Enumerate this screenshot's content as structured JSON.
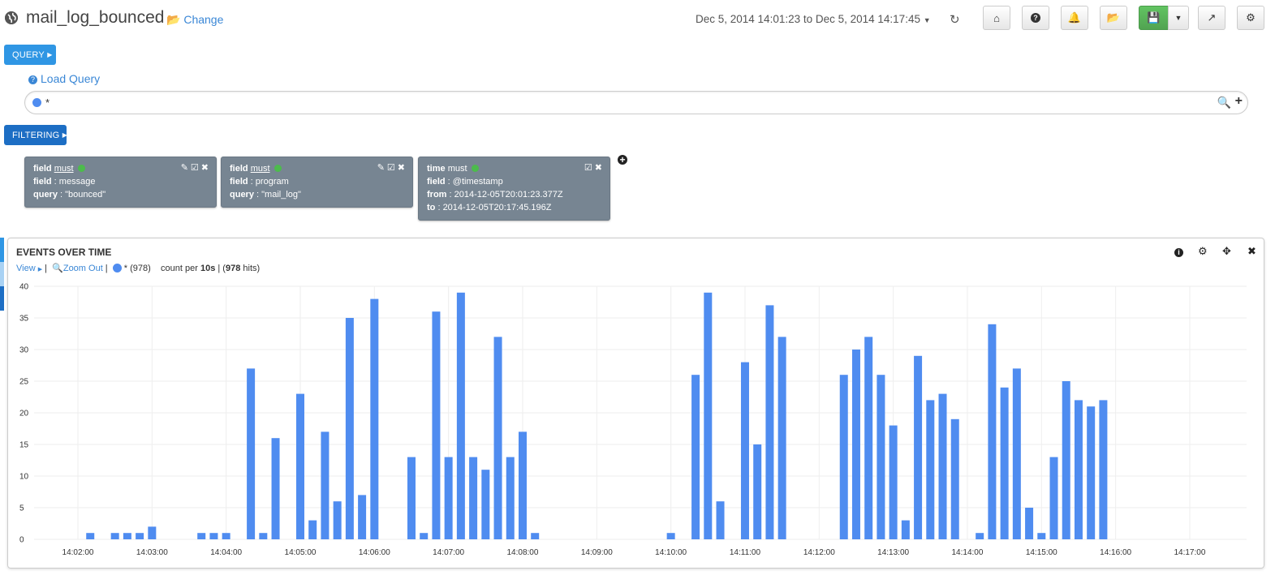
{
  "header": {
    "title": "mail_log_bounced",
    "change_label": "Change",
    "timerange": "Dec 5, 2014 14:01:23 to Dec 5, 2014 14:17:45",
    "buttons": [
      "home-icon",
      "help-icon",
      "bell-icon",
      "folder-open-icon",
      "save-icon",
      "caret-down-icon",
      "share-icon",
      "gear-icon"
    ]
  },
  "query": {
    "button_label": "QUERY",
    "load_query_label": "Load Query",
    "value": "*"
  },
  "filtering": {
    "button_label": "FILTERING",
    "filters": [
      {
        "type": "field",
        "mode": "must",
        "lines": [
          {
            "k": "field",
            "v": "message"
          },
          {
            "k": "query",
            "v": "\"bounced\""
          }
        ]
      },
      {
        "type": "field",
        "mode": "must",
        "lines": [
          {
            "k": "field",
            "v": "program"
          },
          {
            "k": "query",
            "v": "\"mail_log\""
          }
        ]
      },
      {
        "type": "time",
        "mode": "must",
        "lines": [
          {
            "k": "field",
            "v": "@timestamp"
          },
          {
            "k": "from",
            "v": "2014-12-05T20:01:23.377Z"
          },
          {
            "k": "to",
            "v": "2014-12-05T20:17:45.196Z"
          }
        ]
      }
    ]
  },
  "panel": {
    "title": "EVENTS OVER TIME",
    "view_label": "View",
    "zoom_out_label": "Zoom Out",
    "series_label": "* (978)",
    "count_prefix": "count per ",
    "interval": "10s",
    "hits_prefix": " | (",
    "hits": "978",
    "hits_suffix": " hits)"
  },
  "colors": {
    "bar": "#4f8cf0",
    "accent": "#2f96e4",
    "save": "#5cb85c",
    "filter_bg": "#778592"
  },
  "chart_data": {
    "type": "bar",
    "title": "EVENTS OVER TIME",
    "xlabel": "",
    "ylabel": "",
    "ylim": [
      0,
      40
    ],
    "yticks": [
      0,
      5,
      10,
      15,
      20,
      25,
      30,
      35,
      40
    ],
    "xticks": [
      "14:02:00",
      "14:03:00",
      "14:04:00",
      "14:05:00",
      "14:06:00",
      "14:07:00",
      "14:08:00",
      "14:09:00",
      "14:10:00",
      "14:11:00",
      "14:12:00",
      "14:13:00",
      "14:14:00",
      "14:15:00",
      "14:16:00",
      "14:17:00"
    ],
    "grid": true,
    "interval": "10s",
    "series": [
      {
        "name": "*",
        "points": [
          [
            "14:02:10",
            1
          ],
          [
            "14:02:30",
            1
          ],
          [
            "14:02:40",
            1
          ],
          [
            "14:02:50",
            1
          ],
          [
            "14:03:00",
            2
          ],
          [
            "14:03:40",
            1
          ],
          [
            "14:03:50",
            1
          ],
          [
            "14:04:00",
            1
          ],
          [
            "14:04:20",
            27
          ],
          [
            "14:04:30",
            1
          ],
          [
            "14:04:40",
            16
          ],
          [
            "14:05:00",
            23
          ],
          [
            "14:05:10",
            3
          ],
          [
            "14:05:20",
            17
          ],
          [
            "14:05:30",
            6
          ],
          [
            "14:05:40",
            35
          ],
          [
            "14:05:50",
            7
          ],
          [
            "14:06:00",
            38
          ],
          [
            "14:06:30",
            13
          ],
          [
            "14:06:40",
            1
          ],
          [
            "14:06:50",
            36
          ],
          [
            "14:07:00",
            13
          ],
          [
            "14:07:10",
            39
          ],
          [
            "14:07:20",
            13
          ],
          [
            "14:07:30",
            11
          ],
          [
            "14:07:40",
            32
          ],
          [
            "14:07:50",
            13
          ],
          [
            "14:08:00",
            17
          ],
          [
            "14:08:10",
            1
          ],
          [
            "14:10:00",
            1
          ],
          [
            "14:10:20",
            26
          ],
          [
            "14:10:30",
            39
          ],
          [
            "14:10:40",
            6
          ],
          [
            "14:11:00",
            28
          ],
          [
            "14:11:10",
            15
          ],
          [
            "14:11:20",
            37
          ],
          [
            "14:11:30",
            32
          ],
          [
            "14:12:20",
            26
          ],
          [
            "14:12:30",
            30
          ],
          [
            "14:12:40",
            32
          ],
          [
            "14:12:50",
            26
          ],
          [
            "14:13:00",
            18
          ],
          [
            "14:13:10",
            3
          ],
          [
            "14:13:20",
            29
          ],
          [
            "14:13:30",
            22
          ],
          [
            "14:13:40",
            23
          ],
          [
            "14:13:50",
            19
          ],
          [
            "14:14:10",
            1
          ],
          [
            "14:14:20",
            34
          ],
          [
            "14:14:30",
            24
          ],
          [
            "14:14:40",
            27
          ],
          [
            "14:14:50",
            5
          ],
          [
            "14:15:00",
            1
          ],
          [
            "14:15:10",
            13
          ],
          [
            "14:15:20",
            25
          ],
          [
            "14:15:30",
            22
          ],
          [
            "14:15:40",
            21
          ],
          [
            "14:15:50",
            22
          ]
        ]
      }
    ]
  }
}
